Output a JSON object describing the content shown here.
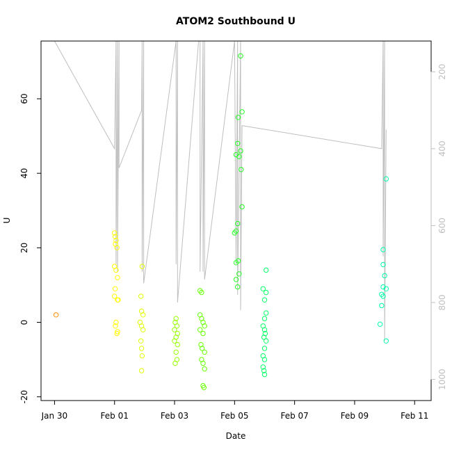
{
  "chart_data": {
    "type": "scatter",
    "title": "ATOM2 Southbound U",
    "xlabel": "Date",
    "ylabel": "U",
    "x_ticks": [
      "Jan 30",
      "Feb 01",
      "Feb 03",
      "Feb 05",
      "Feb 07",
      "Feb 09",
      "Feb 11"
    ],
    "y_ticks": [
      "-20",
      "0",
      "20",
      "40",
      "60"
    ],
    "y_ticks_right": [
      "200",
      "400",
      "600",
      "800",
      "1000"
    ],
    "xlim_days": [
      -1.45,
      11.55
    ],
    "ylim": [
      -21,
      75.5
    ],
    "y2lim": [
      1055,
      120
    ],
    "colors": {
      "axis": "#000000",
      "right_axis": "#bebebe",
      "depth_line": "#bebebe"
    },
    "depth_trace": [
      [
        -1.0,
        120
      ],
      [
        1.0,
        400
      ],
      [
        1.05,
        120
      ],
      [
        1.05,
        700
      ],
      [
        1.1,
        120
      ],
      [
        1.1,
        720
      ],
      [
        1.15,
        120
      ],
      [
        1.15,
        450
      ],
      [
        1.9,
        300
      ],
      [
        1.92,
        120
      ],
      [
        1.92,
        720
      ],
      [
        1.97,
        120
      ],
      [
        1.97,
        750
      ],
      [
        3.05,
        120
      ],
      [
        3.05,
        700
      ],
      [
        3.1,
        120
      ],
      [
        3.1,
        800
      ],
      [
        3.8,
        120
      ],
      [
        3.85,
        120
      ],
      [
        3.85,
        720
      ],
      [
        3.95,
        120
      ],
      [
        3.95,
        720
      ],
      [
        4.0,
        120
      ],
      [
        4.0,
        740
      ],
      [
        5.0,
        120
      ],
      [
        5.05,
        700
      ],
      [
        5.1,
        120
      ],
      [
        5.1,
        780
      ],
      [
        5.2,
        120
      ],
      [
        5.2,
        820
      ],
      [
        5.25,
        340
      ],
      [
        9.9,
        400
      ],
      [
        9.95,
        120
      ],
      [
        9.95,
        680
      ],
      [
        10.0,
        120
      ],
      [
        10.0,
        900
      ],
      [
        10.05,
        350
      ]
    ],
    "points": [
      {
        "x": -0.95,
        "y": 2,
        "color": "#ff8c00"
      },
      {
        "x": 1.0,
        "y": 24,
        "color": "#ffff00"
      },
      {
        "x": 1.02,
        "y": 23,
        "color": "#ffff00"
      },
      {
        "x": 1.05,
        "y": 22,
        "color": "#ffff00"
      },
      {
        "x": 1.03,
        "y": 21,
        "color": "#ffff00"
      },
      {
        "x": 1.08,
        "y": 20,
        "color": "#ffff00"
      },
      {
        "x": 1.0,
        "y": 15,
        "color": "#ffff00"
      },
      {
        "x": 1.05,
        "y": 14,
        "color": "#ffff00"
      },
      {
        "x": 1.1,
        "y": 12,
        "color": "#ffff00"
      },
      {
        "x": 1.02,
        "y": 9,
        "color": "#ffff00"
      },
      {
        "x": 1.0,
        "y": 7,
        "color": "#ffff00"
      },
      {
        "x": 1.1,
        "y": 6,
        "color": "#ffff00"
      },
      {
        "x": 1.12,
        "y": 6,
        "color": "#ffff00"
      },
      {
        "x": 1.05,
        "y": 0,
        "color": "#ffff00"
      },
      {
        "x": 1.03,
        "y": -1,
        "color": "#ffff00"
      },
      {
        "x": 1.08,
        "y": -3,
        "color": "#ffff00"
      },
      {
        "x": 1.1,
        "y": -2.5,
        "color": "#ffff00"
      },
      {
        "x": 1.92,
        "y": 15,
        "color": "#e0ff00"
      },
      {
        "x": 1.88,
        "y": 7,
        "color": "#e0ff00"
      },
      {
        "x": 1.9,
        "y": 3,
        "color": "#e0ff00"
      },
      {
        "x": 1.95,
        "y": 2,
        "color": "#e0ff00"
      },
      {
        "x": 1.85,
        "y": 0,
        "color": "#e0ff00"
      },
      {
        "x": 1.9,
        "y": -1,
        "color": "#e0ff00"
      },
      {
        "x": 1.95,
        "y": -2,
        "color": "#e0ff00"
      },
      {
        "x": 1.88,
        "y": -5,
        "color": "#e0ff00"
      },
      {
        "x": 1.9,
        "y": -7,
        "color": "#e0ff00"
      },
      {
        "x": 1.92,
        "y": -9,
        "color": "#e0ff00"
      },
      {
        "x": 1.9,
        "y": -13,
        "color": "#e0ff00"
      },
      {
        "x": 3.05,
        "y": 1,
        "color": "#99ff00"
      },
      {
        "x": 3.02,
        "y": 0,
        "color": "#99ff00"
      },
      {
        "x": 3.08,
        "y": -1,
        "color": "#99ff00"
      },
      {
        "x": 3.0,
        "y": -2,
        "color": "#99ff00"
      },
      {
        "x": 3.1,
        "y": -3,
        "color": "#99ff00"
      },
      {
        "x": 3.05,
        "y": -4,
        "color": "#99ff00"
      },
      {
        "x": 3.0,
        "y": -5,
        "color": "#99ff00"
      },
      {
        "x": 3.1,
        "y": -6,
        "color": "#99ff00"
      },
      {
        "x": 3.05,
        "y": -8,
        "color": "#99ff00"
      },
      {
        "x": 3.08,
        "y": -10,
        "color": "#99ff00"
      },
      {
        "x": 3.02,
        "y": -11,
        "color": "#99ff00"
      },
      {
        "x": 3.85,
        "y": 8.5,
        "color": "#66ff00"
      },
      {
        "x": 3.9,
        "y": 8,
        "color": "#66ff00"
      },
      {
        "x": 3.85,
        "y": 2,
        "color": "#66ff00"
      },
      {
        "x": 3.9,
        "y": 1,
        "color": "#66ff00"
      },
      {
        "x": 3.95,
        "y": 0,
        "color": "#66ff00"
      },
      {
        "x": 4.0,
        "y": -1,
        "color": "#66ff00"
      },
      {
        "x": 3.85,
        "y": -2,
        "color": "#66ff00"
      },
      {
        "x": 3.95,
        "y": -3,
        "color": "#66ff00"
      },
      {
        "x": 3.88,
        "y": -6,
        "color": "#66ff00"
      },
      {
        "x": 3.92,
        "y": -7,
        "color": "#66ff00"
      },
      {
        "x": 4.0,
        "y": -8,
        "color": "#66ff00"
      },
      {
        "x": 3.9,
        "y": -10,
        "color": "#66ff00"
      },
      {
        "x": 3.95,
        "y": -11,
        "color": "#66ff00"
      },
      {
        "x": 4.0,
        "y": -12.5,
        "color": "#66ff00"
      },
      {
        "x": 3.95,
        "y": -17,
        "color": "#66ff00"
      },
      {
        "x": 3.98,
        "y": -17.5,
        "color": "#66ff00"
      },
      {
        "x": 5.2,
        "y": 71.5,
        "color": "#22ff22"
      },
      {
        "x": 5.25,
        "y": 56.5,
        "color": "#22ff22"
      },
      {
        "x": 5.12,
        "y": 55,
        "color": "#22ff22"
      },
      {
        "x": 5.1,
        "y": 48,
        "color": "#22ff22"
      },
      {
        "x": 5.2,
        "y": 46,
        "color": "#22ff22"
      },
      {
        "x": 5.05,
        "y": 45,
        "color": "#22ff22"
      },
      {
        "x": 5.15,
        "y": 44.5,
        "color": "#22ff22"
      },
      {
        "x": 5.22,
        "y": 41,
        "color": "#22ff22"
      },
      {
        "x": 5.25,
        "y": 31,
        "color": "#22ff22"
      },
      {
        "x": 5.1,
        "y": 26.5,
        "color": "#22ff22"
      },
      {
        "x": 5.0,
        "y": 24,
        "color": "#22ff22"
      },
      {
        "x": 5.05,
        "y": 24.5,
        "color": "#22ff22"
      },
      {
        "x": 5.05,
        "y": 16,
        "color": "#22ff22"
      },
      {
        "x": 5.12,
        "y": 16.5,
        "color": "#22ff22"
      },
      {
        "x": 5.15,
        "y": 13,
        "color": "#22ff22"
      },
      {
        "x": 5.05,
        "y": 11.5,
        "color": "#22ff22"
      },
      {
        "x": 5.1,
        "y": 9.5,
        "color": "#22ff22"
      },
      {
        "x": 6.05,
        "y": 14,
        "color": "#00ff66"
      },
      {
        "x": 5.95,
        "y": 9,
        "color": "#00ff66"
      },
      {
        "x": 6.05,
        "y": 8,
        "color": "#00ff66"
      },
      {
        "x": 6.0,
        "y": 6,
        "color": "#00ff66"
      },
      {
        "x": 6.05,
        "y": 2.5,
        "color": "#00ff66"
      },
      {
        "x": 6.0,
        "y": 1,
        "color": "#00ff66"
      },
      {
        "x": 5.95,
        "y": -1,
        "color": "#00ff66"
      },
      {
        "x": 6.0,
        "y": -2,
        "color": "#00ff66"
      },
      {
        "x": 6.02,
        "y": -3,
        "color": "#00ff66"
      },
      {
        "x": 5.98,
        "y": -4,
        "color": "#00ff66"
      },
      {
        "x": 6.05,
        "y": -5,
        "color": "#00ff66"
      },
      {
        "x": 6.0,
        "y": -7,
        "color": "#00ff66"
      },
      {
        "x": 5.95,
        "y": -9,
        "color": "#00ff66"
      },
      {
        "x": 6.0,
        "y": -10,
        "color": "#00ff66"
      },
      {
        "x": 5.95,
        "y": -12,
        "color": "#00ff66"
      },
      {
        "x": 5.98,
        "y": -13,
        "color": "#00ff66"
      },
      {
        "x": 6.0,
        "y": -14,
        "color": "#00ff66"
      },
      {
        "x": 10.05,
        "y": 38.5,
        "color": "#00ffaa"
      },
      {
        "x": 9.95,
        "y": 19.5,
        "color": "#00ffaa"
      },
      {
        "x": 9.95,
        "y": 15.5,
        "color": "#00ffaa"
      },
      {
        "x": 10.0,
        "y": 12.5,
        "color": "#00ffaa"
      },
      {
        "x": 9.95,
        "y": 9.5,
        "color": "#00ffaa"
      },
      {
        "x": 10.05,
        "y": 9,
        "color": "#00ffaa"
      },
      {
        "x": 9.9,
        "y": 7.5,
        "color": "#00ffaa"
      },
      {
        "x": 9.95,
        "y": 7,
        "color": "#00ffaa"
      },
      {
        "x": 9.9,
        "y": 4.5,
        "color": "#00ffaa"
      },
      {
        "x": 9.85,
        "y": -0.5,
        "color": "#00ffaa"
      },
      {
        "x": 10.05,
        "y": -5,
        "color": "#00ffaa"
      }
    ]
  }
}
